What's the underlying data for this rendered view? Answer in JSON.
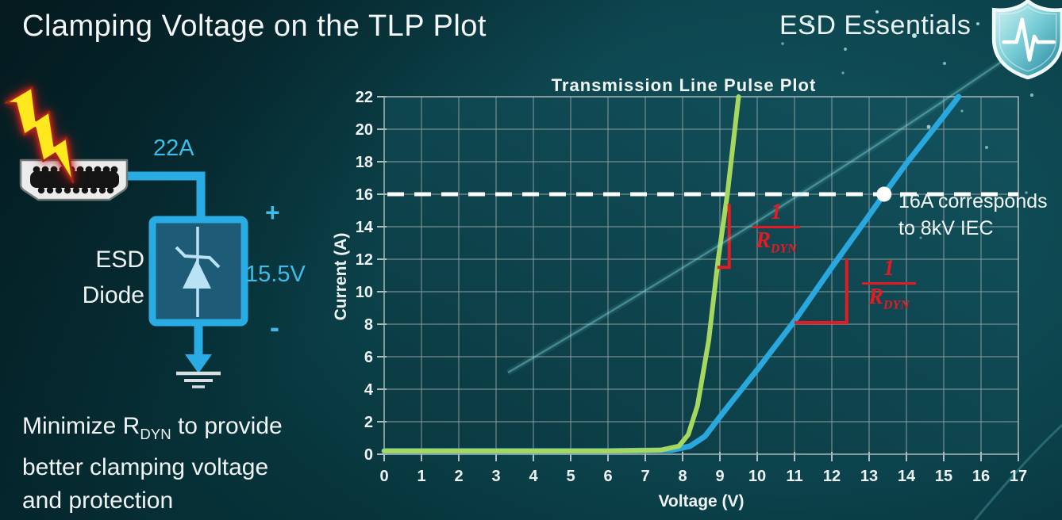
{
  "slide": {
    "title": "Clamping Voltage on the TLP Plot",
    "brand": {
      "name": "ESD Essentials",
      "logo_icon": "shield-pulse-icon"
    },
    "footer_note": {
      "line1_pre": "Minimize R",
      "line1_sub": "DYN",
      "line1_post": " to provide",
      "line2": "better clamping voltage",
      "line3": "and protection"
    }
  },
  "diagram": {
    "surge_current_label": "22A",
    "device_label_line1": "ESD",
    "device_label_line2": "Diode",
    "plus_label": "+",
    "clamp_voltage_label": "15.5V",
    "minus_label": "-",
    "icons": [
      "lightning-bolt-icon",
      "hdmi-connector-icon",
      "zener-diode-icon",
      "ground-icon"
    ],
    "wire_color": "#29abe3",
    "bolt_color": "#ffe81e"
  },
  "chart_data": {
    "type": "line",
    "title": "Transmission Line Pulse Plot",
    "xlabel": "Voltage (V)",
    "ylabel": "Current (A)",
    "xlim": [
      0,
      17
    ],
    "ylim": [
      0,
      22
    ],
    "x_tick_step": 1,
    "y_tick_step": 2,
    "grid": true,
    "legend": "none",
    "series": [
      {
        "name": "ESD diode TLP curve (low RDYN, steep)",
        "color": "#a6d75f",
        "width": 6,
        "points": [
          [
            0,
            0.2
          ],
          [
            6,
            0.2
          ],
          [
            7.4,
            0.25
          ],
          [
            7.9,
            0.5
          ],
          [
            8.15,
            1.2
          ],
          [
            8.4,
            3
          ],
          [
            8.7,
            7
          ],
          [
            8.95,
            11.9
          ],
          [
            9.2,
            16
          ],
          [
            9.5,
            22
          ]
        ]
      },
      {
        "name": "ESD diode TLP curve (higher RDYN)",
        "color": "#29a8e0",
        "width": 7,
        "points": [
          [
            0,
            0.2
          ],
          [
            6,
            0.2
          ],
          [
            7.7,
            0.25
          ],
          [
            8.2,
            0.5
          ],
          [
            8.6,
            1.1
          ],
          [
            9.1,
            2.6
          ],
          [
            10,
            5.2
          ],
          [
            11,
            8.2
          ],
          [
            12,
            11.5
          ],
          [
            13,
            14.7
          ],
          [
            13.4,
            16
          ],
          [
            14,
            17.9
          ],
          [
            15,
            20.8
          ],
          [
            15.4,
            22
          ]
        ]
      }
    ],
    "reference_line": {
      "y": 16,
      "style": "dashed",
      "color": "#ffffff"
    },
    "marker": {
      "x": 13.4,
      "y": 16,
      "color": "#ffffff",
      "label_line1": "16A corresponds",
      "label_line2": "to 8kV IEC"
    },
    "slope_indicators": [
      {
        "polyline": [
          [
            8.93,
            11.5
          ],
          [
            9.25,
            11.5
          ],
          [
            9.25,
            15.4
          ]
        ],
        "color": "#e61a23"
      },
      {
        "polyline": [
          [
            11.0,
            8.1
          ],
          [
            12.4,
            8.1
          ],
          [
            12.4,
            12.0
          ]
        ],
        "color": "#e61a23"
      }
    ],
    "slope_labels": [
      {
        "numerator": "1",
        "denominator_base": "R",
        "denominator_sub": "DYN"
      },
      {
        "numerator": "1",
        "denominator_base": "R",
        "denominator_sub": "DYN"
      }
    ]
  },
  "colors": {
    "background_dark": "#062e34",
    "background_light": "#135661",
    "accent_cyan": "#3fbde8",
    "grid": "#8ea1a2",
    "annotation_red": "#e61a23"
  }
}
